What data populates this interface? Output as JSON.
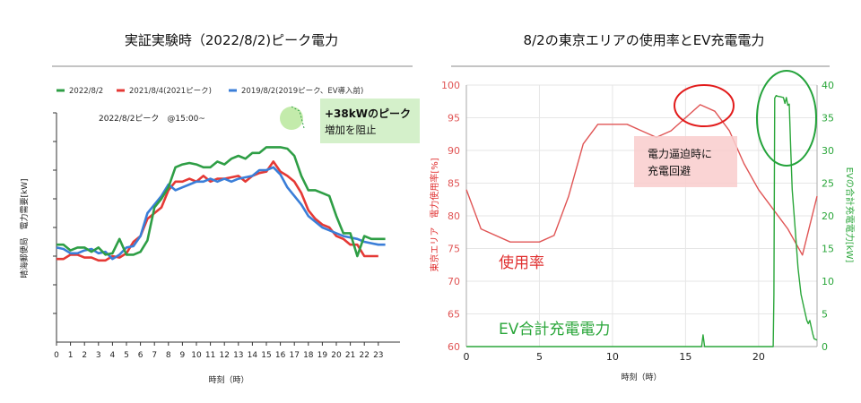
{
  "chart_data": [
    {
      "type": "line",
      "title": "実証実験時（2022/8/2)ピーク電力",
      "xlabel": "時刻（時）",
      "ylabel": "晴海郵便局　電力需要[kW]",
      "xlim": [
        0,
        23.5
      ],
      "ylim": [
        0,
        8
      ],
      "x_ticks": [
        "0",
        "1",
        "2",
        "3",
        "4",
        "5",
        "6",
        "7",
        "8",
        "9",
        "10",
        "11",
        "12",
        "13",
        "14",
        "15",
        "16",
        "17",
        "18",
        "19",
        "20",
        "21",
        "22",
        "23"
      ],
      "annotation_peak": "2022/8/2ピーク　@15:00~",
      "annotation_box_line1": "+38kWのピーク",
      "annotation_box_line2": "増加を阻止",
      "series": [
        {
          "name": "2022/8/2",
          "color": "#2e9e45",
          "x": [
            0,
            0.5,
            1,
            1.5,
            2,
            2.5,
            3,
            3.5,
            4,
            4.5,
            5,
            5.5,
            6,
            6.5,
            7,
            7.5,
            8,
            8.5,
            9,
            9.5,
            10,
            10.5,
            11,
            11.5,
            12,
            12.5,
            13,
            13.5,
            14,
            14.5,
            15,
            15.5,
            16,
            16.5,
            17,
            17.5,
            18,
            18.5,
            19,
            19.5,
            20,
            20.5,
            21,
            21.5,
            22,
            22.5,
            23,
            23.5
          ],
          "y": [
            3.4,
            3.4,
            3.2,
            3.3,
            3.3,
            3.15,
            3.3,
            3.05,
            3.1,
            3.6,
            3.05,
            3.05,
            3.15,
            3.55,
            4.7,
            5.0,
            5.4,
            6.1,
            6.2,
            6.25,
            6.2,
            6.1,
            6.1,
            6.3,
            6.2,
            6.4,
            6.5,
            6.4,
            6.6,
            6.6,
            6.8,
            6.8,
            6.8,
            6.75,
            6.5,
            5.8,
            5.3,
            5.3,
            5.2,
            5.1,
            4.4,
            3.8,
            3.8,
            3.0,
            3.7,
            3.6,
            3.6,
            3.6
          ]
        },
        {
          "name": "2021/8/4(2021ピーク)",
          "color": "#e53935",
          "x": [
            0,
            0.5,
            1,
            1.5,
            2,
            2.5,
            3,
            3.5,
            4,
            4.5,
            5,
            5.5,
            6,
            6.5,
            7,
            7.5,
            8,
            8.5,
            9,
            9.5,
            10,
            10.5,
            11,
            11.5,
            12,
            12.5,
            13,
            13.5,
            14,
            14.5,
            15,
            15.5,
            16,
            16.5,
            17,
            17.5,
            18,
            18.5,
            19,
            19.5,
            20,
            20.5,
            21,
            21.5,
            22,
            22.5,
            23
          ],
          "y": [
            2.9,
            2.9,
            3.05,
            3.05,
            2.95,
            2.95,
            2.85,
            2.85,
            3.0,
            2.95,
            3.1,
            3.5,
            3.7,
            4.3,
            4.5,
            4.7,
            5.3,
            5.6,
            5.6,
            5.7,
            5.6,
            5.8,
            5.6,
            5.7,
            5.7,
            5.75,
            5.8,
            5.6,
            5.8,
            5.9,
            5.95,
            6.3,
            5.95,
            5.8,
            5.6,
            5.2,
            4.6,
            4.3,
            4.1,
            4.0,
            3.7,
            3.6,
            3.4,
            3.4,
            3.0,
            3.0,
            3.0
          ]
        },
        {
          "name": "2019/8/2(2019ピーク、EV導入前)",
          "color": "#3a7ed8",
          "x": [
            0,
            0.5,
            1,
            1.5,
            2,
            2.5,
            3,
            3.5,
            4,
            4.5,
            5,
            5.5,
            6,
            6.5,
            7,
            7.5,
            8,
            8.5,
            9,
            9.5,
            10,
            10.5,
            11,
            11.5,
            12,
            12.5,
            13,
            13.5,
            14,
            14.5,
            15,
            15.5,
            16,
            16.5,
            17,
            17.5,
            18,
            18.5,
            19,
            19.5,
            20,
            20.5,
            21,
            21.5,
            22,
            22.5,
            23,
            23.5
          ],
          "y": [
            3.3,
            3.25,
            3.1,
            3.1,
            3.2,
            3.25,
            3.1,
            3.15,
            2.9,
            3.05,
            3.3,
            3.35,
            3.7,
            4.5,
            4.8,
            5.1,
            5.5,
            5.3,
            5.4,
            5.5,
            5.6,
            5.6,
            5.7,
            5.6,
            5.7,
            5.6,
            5.7,
            5.75,
            5.8,
            6.0,
            6.0,
            6.1,
            5.85,
            5.4,
            5.1,
            4.8,
            4.4,
            4.2,
            4.0,
            3.9,
            3.8,
            3.7,
            3.65,
            3.6,
            3.5,
            3.45,
            3.4,
            3.4
          ]
        }
      ]
    },
    {
      "type": "line",
      "title": "8/2の東京エリアの使用率とEV充電電力",
      "xlabel": "時刻（時）",
      "ylabel": "東京エリア　電力使用率[%]",
      "ylabel_right": "EVの合計充電電力[kW]",
      "xlim": [
        0,
        24
      ],
      "ylim": [
        60,
        100
      ],
      "ylim_right": [
        0,
        40
      ],
      "x_ticks": [
        0,
        5,
        10,
        15,
        20
      ],
      "y_ticks": [
        60,
        65,
        70,
        75,
        80,
        85,
        90,
        95,
        100
      ],
      "y_ticks_right": [
        0,
        5,
        10,
        15,
        20,
        25,
        30,
        35,
        40
      ],
      "label_usage": "使用率",
      "label_ev": "EV合計充電電力",
      "annotation_box_line1": "電力逼迫時に",
      "annotation_box_line2": "充電回避",
      "series": [
        {
          "name": "使用率",
          "axis": "left",
          "color": "#e05555",
          "x": [
            0,
            1,
            3,
            4,
            5,
            6,
            7,
            8,
            9,
            10,
            11,
            12,
            13,
            14,
            15,
            16,
            17,
            18,
            19,
            20,
            21,
            22,
            23,
            24
          ],
          "y": [
            84,
            78,
            76,
            76,
            76,
            77,
            83,
            91,
            94,
            94,
            94,
            93,
            92,
            93,
            95,
            97,
            96,
            93,
            88,
            84,
            81,
            78,
            74,
            83
          ]
        },
        {
          "name": "EV合計充電電力",
          "axis": "right",
          "color": "#2aa63a",
          "x": [
            0,
            16.0,
            16.1,
            16.2,
            16.3,
            16.4,
            20.9,
            21.0,
            21.05,
            21.1,
            21.2,
            21.3,
            21.5,
            21.7,
            21.8,
            21.9,
            22.0,
            22.1,
            22.2,
            22.3,
            22.5,
            22.7,
            22.9,
            23.1,
            23.3,
            23.4,
            23.5,
            23.6,
            23.7,
            23.8,
            24
          ],
          "y": [
            0,
            0,
            0,
            1.8,
            0,
            0,
            0,
            0,
            8,
            38,
            38.4,
            38.3,
            38.2,
            38.1,
            37.2,
            38.1,
            36.9,
            37.1,
            30,
            24,
            18,
            12,
            8,
            6,
            4,
            3.5,
            4,
            3,
            2,
            1.2,
            1
          ]
        }
      ]
    }
  ]
}
